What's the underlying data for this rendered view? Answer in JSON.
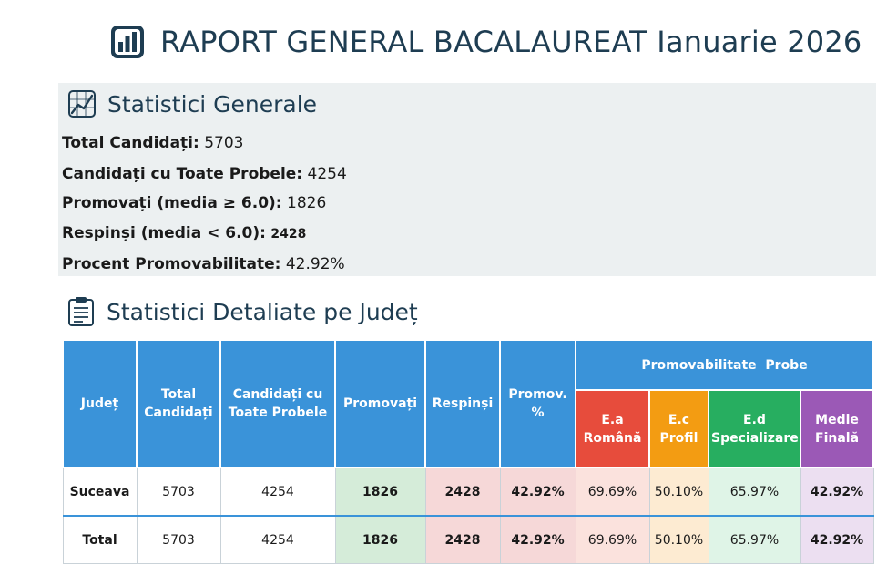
{
  "header": {
    "title": "RAPORT GENERAL BACALAUREAT Ianuarie 2026",
    "icon": "bar-chart-icon"
  },
  "general": {
    "title": "Statistici Generale",
    "icon": "line-chart-icon",
    "stats": [
      {
        "label": "Total Candidați:",
        "value": "5703"
      },
      {
        "label": "Candidați cu Toate Probele:",
        "value": "4254"
      },
      {
        "label": "Promovați (media ≥ 6.0):",
        "value": "1826"
      },
      {
        "label": "Respinși (media < 6.0):",
        "value": "2428"
      },
      {
        "label": "Procent Promovabilitate:",
        "value": "42.92%"
      }
    ]
  },
  "detail": {
    "title": "Statistici Detaliate pe Județ",
    "icon": "clipboard-icon",
    "columns": {
      "judet": "Județ",
      "total_candidati": "Total Candidați",
      "toate_probele": "Candidați cu Toate Probele",
      "promovati": "Promovați",
      "respinsi": "Respinși",
      "promov_pct": "Promov. %",
      "group": "Promovabilitate  Probe",
      "ea": "E.a Română",
      "ec": "E.c Profil",
      "ed": "E.d Specializare",
      "medie": "Medie Finală"
    },
    "rows": [
      {
        "judet": "Suceava",
        "total": "5703",
        "toate": "4254",
        "promovati": "1826",
        "respinsi": "2428",
        "pct": "42.92%",
        "ea": "69.69%",
        "ec": "50.10%",
        "ed": "65.97%",
        "medie": "42.92%"
      },
      {
        "judet": "Total",
        "total": "5703",
        "toate": "4254",
        "promovati": "1826",
        "respinsi": "2428",
        "pct": "42.92%",
        "ea": "69.69%",
        "ec": "50.10%",
        "ed": "65.97%",
        "medie": "42.92%"
      }
    ]
  },
  "colors": {
    "header_blue": "#3a93d9",
    "romana": "#e74c3c",
    "profil": "#f39c12",
    "specializare": "#27ae60",
    "medie": "#9b59b6",
    "title_text": "#1e3d52"
  }
}
